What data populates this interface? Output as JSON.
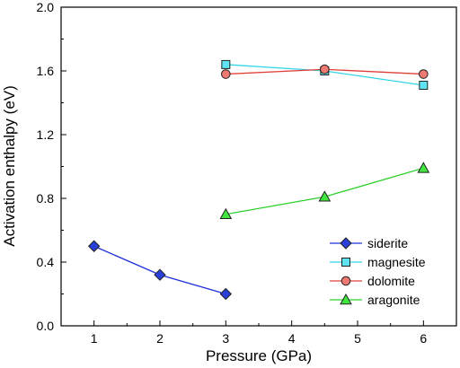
{
  "chart_data": {
    "type": "line",
    "title": "",
    "xlabel": "Pressure (GPa)",
    "ylabel": "Activation enthalpy (eV)",
    "xlim": [
      0.5,
      6.5
    ],
    "ylim": [
      0.0,
      2.0
    ],
    "xticks": [
      1,
      2,
      3,
      4,
      5,
      6
    ],
    "yticks": [
      0.0,
      0.4,
      0.8,
      1.2,
      1.6,
      2.0
    ],
    "xtick_labels": [
      "1",
      "2",
      "3",
      "4",
      "5",
      "6"
    ],
    "ytick_labels": [
      "0.0",
      "0.4",
      "0.8",
      "1.2",
      "1.6",
      "2.0"
    ],
    "grid": false,
    "legend_position": "bottom-right",
    "series": [
      {
        "name": "siderite",
        "marker": "diamond",
        "line_color": "#1f2fd6",
        "marker_fill": "#2a40d8",
        "x": [
          1,
          2,
          3
        ],
        "y": [
          0.5,
          0.32,
          0.2
        ]
      },
      {
        "name": "magnesite",
        "marker": "square",
        "line_color": "#33d6e6",
        "marker_fill": "#5fe3f0",
        "x": [
          3,
          4.5,
          6
        ],
        "y": [
          1.64,
          1.6,
          1.51
        ]
      },
      {
        "name": "dolomite",
        "marker": "circle",
        "line_color": "#e0403a",
        "marker_fill": "#f07a72",
        "x": [
          3,
          4.5,
          6
        ],
        "y": [
          1.58,
          1.61,
          1.58
        ]
      },
      {
        "name": "aragonite",
        "marker": "triangle",
        "line_color": "#2ed02e",
        "marker_fill": "#3ee63e",
        "x": [
          3,
          4.5,
          6
        ],
        "y": [
          0.7,
          0.81,
          0.99
        ]
      }
    ]
  }
}
